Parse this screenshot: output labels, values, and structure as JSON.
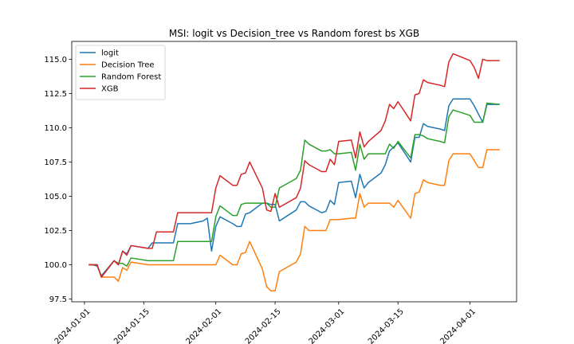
{
  "chart_data": {
    "type": "line",
    "title": "MSI: logit vs Decision_tree vs Random forest bs XGB",
    "xlabel": "",
    "ylabel": "",
    "xlim": [
      "2023-12-29",
      "2024-04-12"
    ],
    "ylim": [
      97.3,
      116.3
    ],
    "x_ticks": [
      "2024-01-01",
      "2024-01-15",
      "2024-02-01",
      "2024-02-15",
      "2024-03-01",
      "2024-03-15",
      "2024-04-01"
    ],
    "y_ticks": [
      97.5,
      100.0,
      102.5,
      105.0,
      107.5,
      110.0,
      112.5,
      115.0
    ],
    "legend_position": "top-left",
    "grid": false,
    "series": [
      {
        "name": "logit",
        "color": "#1f77b4",
        "points": [
          [
            "2024-01-02",
            100.0
          ],
          [
            "2024-01-03",
            100.0
          ],
          [
            "2024-01-04",
            99.9
          ],
          [
            "2024-01-05",
            99.2
          ],
          [
            "2024-01-08",
            100.3
          ],
          [
            "2024-01-09",
            100.0
          ],
          [
            "2024-01-10",
            101.0
          ],
          [
            "2024-01-11",
            100.8
          ],
          [
            "2024-01-12",
            101.4
          ],
          [
            "2024-01-16",
            101.2
          ],
          [
            "2024-01-17",
            101.6
          ],
          [
            "2024-01-18",
            101.6
          ],
          [
            "2024-01-19",
            101.6
          ],
          [
            "2024-01-22",
            101.6
          ],
          [
            "2024-01-23",
            103.0
          ],
          [
            "2024-01-24",
            103.0
          ],
          [
            "2024-01-25",
            103.0
          ],
          [
            "2024-01-26",
            103.0
          ],
          [
            "2024-01-29",
            103.2
          ],
          [
            "2024-01-30",
            103.4
          ],
          [
            "2024-01-31",
            101.0
          ],
          [
            "2024-02-01",
            102.8
          ],
          [
            "2024-02-02",
            103.5
          ],
          [
            "2024-02-05",
            103.0
          ],
          [
            "2024-02-06",
            102.8
          ],
          [
            "2024-02-07",
            102.8
          ],
          [
            "2024-02-08",
            103.7
          ],
          [
            "2024-02-09",
            103.8
          ],
          [
            "2024-02-12",
            104.5
          ],
          [
            "2024-02-13",
            104.5
          ],
          [
            "2024-02-14",
            104.4
          ],
          [
            "2024-02-15",
            104.4
          ],
          [
            "2024-02-16",
            103.2
          ],
          [
            "2024-02-20",
            104.0
          ],
          [
            "2024-02-21",
            104.6
          ],
          [
            "2024-02-22",
            104.6
          ],
          [
            "2024-02-23",
            104.3
          ],
          [
            "2024-02-26",
            103.8
          ],
          [
            "2024-02-27",
            103.9
          ],
          [
            "2024-02-28",
            104.7
          ],
          [
            "2024-02-29",
            104.4
          ],
          [
            "2024-03-01",
            106.0
          ],
          [
            "2024-03-04",
            106.1
          ],
          [
            "2024-03-05",
            104.9
          ],
          [
            "2024-03-06",
            106.6
          ],
          [
            "2024-03-07",
            105.6
          ],
          [
            "2024-03-08",
            106.0
          ],
          [
            "2024-03-11",
            106.7
          ],
          [
            "2024-03-12",
            107.3
          ],
          [
            "2024-03-13",
            108.3
          ],
          [
            "2024-03-14",
            108.6
          ],
          [
            "2024-03-15",
            108.9
          ],
          [
            "2024-03-18",
            107.5
          ],
          [
            "2024-03-19",
            109.3
          ],
          [
            "2024-03-20",
            109.3
          ],
          [
            "2024-03-21",
            110.3
          ],
          [
            "2024-03-22",
            110.1
          ],
          [
            "2024-03-25",
            109.9
          ],
          [
            "2024-03-26",
            109.8
          ],
          [
            "2024-03-27",
            111.6
          ],
          [
            "2024-03-28",
            112.1
          ],
          [
            "2024-04-01",
            112.1
          ],
          [
            "2024-04-02",
            111.6
          ],
          [
            "2024-04-03",
            111.0
          ],
          [
            "2024-04-04",
            110.4
          ],
          [
            "2024-04-05",
            111.7
          ],
          [
            "2024-04-08",
            111.7
          ]
        ]
      },
      {
        "name": "Decision Tree",
        "color": "#ff7f0e",
        "points": [
          [
            "2024-01-02",
            100.0
          ],
          [
            "2024-01-03",
            100.0
          ],
          [
            "2024-01-04",
            100.0
          ],
          [
            "2024-01-05",
            99.1
          ],
          [
            "2024-01-08",
            99.1
          ],
          [
            "2024-01-09",
            98.8
          ],
          [
            "2024-01-10",
            99.8
          ],
          [
            "2024-01-11",
            99.6
          ],
          [
            "2024-01-12",
            100.2
          ],
          [
            "2024-01-16",
            100.0
          ],
          [
            "2024-01-17",
            100.0
          ],
          [
            "2024-01-18",
            100.0
          ],
          [
            "2024-01-19",
            100.0
          ],
          [
            "2024-01-22",
            100.0
          ],
          [
            "2024-01-23",
            100.0
          ],
          [
            "2024-01-24",
            100.0
          ],
          [
            "2024-01-25",
            100.0
          ],
          [
            "2024-01-26",
            100.0
          ],
          [
            "2024-01-29",
            100.0
          ],
          [
            "2024-01-30",
            100.0
          ],
          [
            "2024-01-31",
            100.0
          ],
          [
            "2024-02-01",
            100.0
          ],
          [
            "2024-02-02",
            100.7
          ],
          [
            "2024-02-05",
            100.0
          ],
          [
            "2024-02-06",
            100.0
          ],
          [
            "2024-02-07",
            100.8
          ],
          [
            "2024-02-08",
            100.9
          ],
          [
            "2024-02-09",
            101.7
          ],
          [
            "2024-02-12",
            99.7
          ],
          [
            "2024-02-13",
            98.4
          ],
          [
            "2024-02-14",
            98.1
          ],
          [
            "2024-02-15",
            98.1
          ],
          [
            "2024-02-16",
            99.5
          ],
          [
            "2024-02-20",
            100.2
          ],
          [
            "2024-02-21",
            100.8
          ],
          [
            "2024-02-22",
            102.8
          ],
          [
            "2024-02-23",
            102.5
          ],
          [
            "2024-02-26",
            102.5
          ],
          [
            "2024-02-27",
            102.5
          ],
          [
            "2024-02-28",
            103.3
          ],
          [
            "2024-02-29",
            103.3
          ],
          [
            "2024-03-01",
            103.3
          ],
          [
            "2024-03-04",
            103.4
          ],
          [
            "2024-03-05",
            103.4
          ],
          [
            "2024-03-06",
            105.2
          ],
          [
            "2024-03-07",
            104.2
          ],
          [
            "2024-03-08",
            104.5
          ],
          [
            "2024-03-11",
            104.5
          ],
          [
            "2024-03-12",
            104.5
          ],
          [
            "2024-03-13",
            104.5
          ],
          [
            "2024-03-14",
            104.2
          ],
          [
            "2024-03-15",
            104.7
          ],
          [
            "2024-03-18",
            103.4
          ],
          [
            "2024-03-19",
            105.2
          ],
          [
            "2024-03-20",
            105.3
          ],
          [
            "2024-03-21",
            106.2
          ],
          [
            "2024-03-22",
            106.0
          ],
          [
            "2024-03-25",
            105.8
          ],
          [
            "2024-03-26",
            105.8
          ],
          [
            "2024-03-27",
            107.6
          ],
          [
            "2024-03-28",
            108.1
          ],
          [
            "2024-04-01",
            108.1
          ],
          [
            "2024-04-02",
            107.6
          ],
          [
            "2024-04-03",
            107.1
          ],
          [
            "2024-04-04",
            107.1
          ],
          [
            "2024-04-05",
            108.4
          ],
          [
            "2024-04-08",
            108.4
          ]
        ]
      },
      {
        "name": "Random Forest",
        "color": "#2ca02c",
        "points": [
          [
            "2024-01-02",
            100.0
          ],
          [
            "2024-01-03",
            100.0
          ],
          [
            "2024-01-04",
            100.0
          ],
          [
            "2024-01-05",
            99.1
          ],
          [
            "2024-01-08",
            100.3
          ],
          [
            "2024-01-09",
            100.1
          ],
          [
            "2024-01-10",
            100.1
          ],
          [
            "2024-01-11",
            99.9
          ],
          [
            "2024-01-12",
            100.5
          ],
          [
            "2024-01-16",
            100.3
          ],
          [
            "2024-01-17",
            100.3
          ],
          [
            "2024-01-18",
            100.3
          ],
          [
            "2024-01-19",
            100.3
          ],
          [
            "2024-01-22",
            100.3
          ],
          [
            "2024-01-23",
            101.7
          ],
          [
            "2024-01-24",
            101.7
          ],
          [
            "2024-01-25",
            101.7
          ],
          [
            "2024-01-26",
            101.7
          ],
          [
            "2024-01-29",
            101.7
          ],
          [
            "2024-01-30",
            101.7
          ],
          [
            "2024-01-31",
            101.7
          ],
          [
            "2024-02-01",
            103.5
          ],
          [
            "2024-02-02",
            104.3
          ],
          [
            "2024-02-05",
            103.6
          ],
          [
            "2024-02-06",
            103.6
          ],
          [
            "2024-02-07",
            104.4
          ],
          [
            "2024-02-08",
            104.5
          ],
          [
            "2024-02-09",
            104.5
          ],
          [
            "2024-02-12",
            104.5
          ],
          [
            "2024-02-13",
            104.5
          ],
          [
            "2024-02-14",
            104.2
          ],
          [
            "2024-02-15",
            104.2
          ],
          [
            "2024-02-16",
            105.6
          ],
          [
            "2024-02-20",
            106.3
          ],
          [
            "2024-02-21",
            106.9
          ],
          [
            "2024-02-22",
            109.1
          ],
          [
            "2024-02-23",
            108.8
          ],
          [
            "2024-02-26",
            108.3
          ],
          [
            "2024-02-27",
            108.3
          ],
          [
            "2024-02-28",
            108.4
          ],
          [
            "2024-02-29",
            108.1
          ],
          [
            "2024-03-01",
            108.1
          ],
          [
            "2024-03-04",
            108.2
          ],
          [
            "2024-03-05",
            106.9
          ],
          [
            "2024-03-06",
            108.8
          ],
          [
            "2024-03-07",
            107.7
          ],
          [
            "2024-03-08",
            108.1
          ],
          [
            "2024-03-11",
            108.1
          ],
          [
            "2024-03-12",
            108.1
          ],
          [
            "2024-03-13",
            108.8
          ],
          [
            "2024-03-14",
            108.5
          ],
          [
            "2024-03-15",
            109.0
          ],
          [
            "2024-03-18",
            107.8
          ],
          [
            "2024-03-19",
            109.5
          ],
          [
            "2024-03-20",
            109.5
          ],
          [
            "2024-03-21",
            109.4
          ],
          [
            "2024-03-22",
            109.2
          ],
          [
            "2024-03-25",
            109.0
          ],
          [
            "2024-03-26",
            108.9
          ],
          [
            "2024-03-27",
            110.8
          ],
          [
            "2024-03-28",
            111.3
          ],
          [
            "2024-04-01",
            110.9
          ],
          [
            "2024-04-02",
            110.4
          ],
          [
            "2024-04-03",
            110.4
          ],
          [
            "2024-04-04",
            110.4
          ],
          [
            "2024-04-05",
            111.8
          ],
          [
            "2024-04-08",
            111.7
          ]
        ]
      },
      {
        "name": "XGB",
        "color": "#d62728",
        "points": [
          [
            "2024-01-02",
            100.0
          ],
          [
            "2024-01-03",
            100.0
          ],
          [
            "2024-01-04",
            100.0
          ],
          [
            "2024-01-05",
            99.1
          ],
          [
            "2024-01-08",
            100.3
          ],
          [
            "2024-01-09",
            100.0
          ],
          [
            "2024-01-10",
            101.0
          ],
          [
            "2024-01-11",
            100.7
          ],
          [
            "2024-01-12",
            101.4
          ],
          [
            "2024-01-16",
            101.2
          ],
          [
            "2024-01-17",
            101.2
          ],
          [
            "2024-01-18",
            102.4
          ],
          [
            "2024-01-19",
            102.4
          ],
          [
            "2024-01-22",
            102.4
          ],
          [
            "2024-01-23",
            103.8
          ],
          [
            "2024-01-24",
            103.8
          ],
          [
            "2024-01-25",
            103.8
          ],
          [
            "2024-01-26",
            103.8
          ],
          [
            "2024-01-29",
            103.8
          ],
          [
            "2024-01-30",
            103.8
          ],
          [
            "2024-01-31",
            103.8
          ],
          [
            "2024-02-01",
            105.6
          ],
          [
            "2024-02-02",
            106.5
          ],
          [
            "2024-02-05",
            105.8
          ],
          [
            "2024-02-06",
            105.8
          ],
          [
            "2024-02-07",
            106.6
          ],
          [
            "2024-02-08",
            106.7
          ],
          [
            "2024-02-09",
            107.5
          ],
          [
            "2024-02-12",
            105.6
          ],
          [
            "2024-02-13",
            104.0
          ],
          [
            "2024-02-14",
            103.9
          ],
          [
            "2024-02-15",
            105.2
          ],
          [
            "2024-02-16",
            104.2
          ],
          [
            "2024-02-20",
            104.9
          ],
          [
            "2024-02-21",
            105.6
          ],
          [
            "2024-02-22",
            107.6
          ],
          [
            "2024-02-23",
            107.3
          ],
          [
            "2024-02-26",
            106.8
          ],
          [
            "2024-02-27",
            106.8
          ],
          [
            "2024-02-28",
            107.7
          ],
          [
            "2024-02-29",
            107.3
          ],
          [
            "2024-03-01",
            109.0
          ],
          [
            "2024-03-04",
            109.1
          ],
          [
            "2024-03-05",
            107.8
          ],
          [
            "2024-03-06",
            109.7
          ],
          [
            "2024-03-07",
            108.6
          ],
          [
            "2024-03-08",
            109.0
          ],
          [
            "2024-03-11",
            109.8
          ],
          [
            "2024-03-12",
            110.5
          ],
          [
            "2024-03-13",
            111.7
          ],
          [
            "2024-03-14",
            111.4
          ],
          [
            "2024-03-15",
            111.9
          ],
          [
            "2024-03-18",
            110.5
          ],
          [
            "2024-03-19",
            112.4
          ],
          [
            "2024-03-20",
            112.5
          ],
          [
            "2024-03-21",
            113.5
          ],
          [
            "2024-03-22",
            113.3
          ],
          [
            "2024-03-25",
            113.1
          ],
          [
            "2024-03-26",
            113.0
          ],
          [
            "2024-03-27",
            114.8
          ],
          [
            "2024-03-28",
            115.4
          ],
          [
            "2024-04-01",
            114.9
          ],
          [
            "2024-04-02",
            114.4
          ],
          [
            "2024-04-03",
            113.6
          ],
          [
            "2024-04-04",
            115.0
          ],
          [
            "2024-04-05",
            114.9
          ],
          [
            "2024-04-08",
            114.9
          ]
        ]
      }
    ]
  }
}
